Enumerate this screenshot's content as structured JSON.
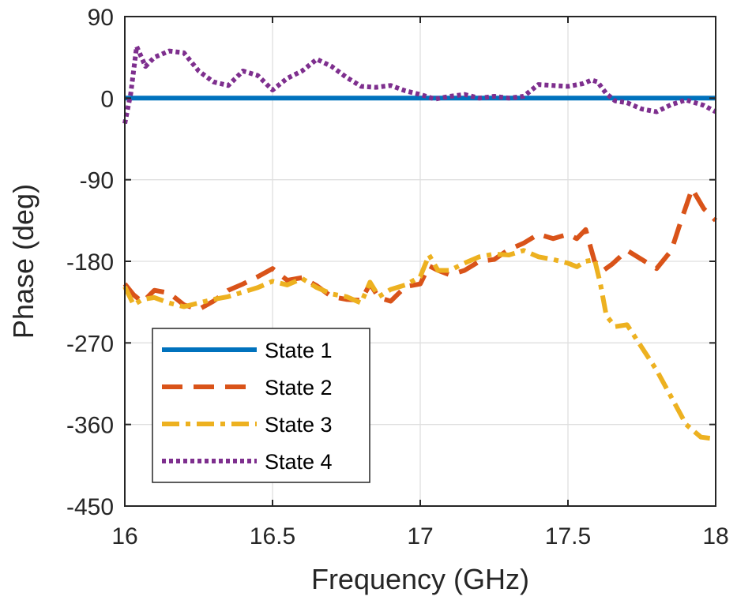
{
  "chart_data": {
    "type": "line",
    "title": "",
    "xlabel": "Frequency (GHz)",
    "ylabel": "Phase (deg)",
    "xlim": [
      16,
      18
    ],
    "ylim": [
      -450,
      90
    ],
    "xticks": [
      16,
      16.5,
      17,
      17.5,
      18
    ],
    "xtick_labels": [
      "16",
      "16.5",
      "17",
      "17.5",
      "18"
    ],
    "yticks": [
      90,
      0,
      -90,
      -180,
      -270,
      -360,
      -450
    ],
    "ytick_labels": [
      "90",
      "0",
      "-90",
      "-180",
      "-270",
      "-360",
      "-450"
    ],
    "grid": true,
    "legend_position": "bottom-left",
    "series": [
      {
        "name": "State 1",
        "label": "State 1",
        "color": "#0072BD",
        "style": "solid",
        "x": [
          16,
          18
        ],
        "y": [
          0,
          0
        ]
      },
      {
        "name": "State 2",
        "label": "State 2",
        "color": "#D95319",
        "style": "dashed",
        "x": [
          16.0,
          16.03,
          16.06,
          16.1,
          16.15,
          16.2,
          16.25,
          16.3,
          16.35,
          16.4,
          16.45,
          16.5,
          16.55,
          16.6,
          16.65,
          16.7,
          16.75,
          16.8,
          16.83,
          16.86,
          16.9,
          16.95,
          17.0,
          17.03,
          17.06,
          17.1,
          17.15,
          17.2,
          17.25,
          17.3,
          17.35,
          17.4,
          17.45,
          17.5,
          17.53,
          17.56,
          17.59,
          17.62,
          17.65,
          17.7,
          17.75,
          17.8,
          17.85,
          17.88,
          17.92,
          17.96,
          18.0
        ],
        "y": [
          -205,
          -217,
          -225,
          -212,
          -215,
          -228,
          -233,
          -224,
          -212,
          -205,
          -197,
          -188,
          -201,
          -198,
          -207,
          -219,
          -222,
          -223,
          -205,
          -220,
          -224,
          -208,
          -205,
          -185,
          -190,
          -195,
          -190,
          -180,
          -178,
          -167,
          -160,
          -150,
          -155,
          -150,
          -155,
          -145,
          -180,
          -190,
          -183,
          -168,
          -178,
          -188,
          -168,
          -138,
          -100,
          -122,
          -135
        ]
      },
      {
        "name": "State 3",
        "label": "State 3",
        "color": "#EDB120",
        "style": "dashdot",
        "x": [
          16.0,
          16.03,
          16.06,
          16.1,
          16.15,
          16.2,
          16.25,
          16.3,
          16.35,
          16.4,
          16.45,
          16.5,
          16.55,
          16.6,
          16.65,
          16.7,
          16.75,
          16.8,
          16.83,
          16.86,
          16.9,
          16.95,
          17.0,
          17.03,
          17.06,
          17.1,
          17.15,
          17.2,
          17.25,
          17.3,
          17.35,
          17.4,
          17.45,
          17.5,
          17.53,
          17.56,
          17.59,
          17.61,
          17.63,
          17.66,
          17.7,
          17.75,
          17.8,
          17.85,
          17.9,
          17.95,
          18.0
        ],
        "y": [
          -208,
          -228,
          -222,
          -220,
          -226,
          -230,
          -226,
          -222,
          -219,
          -214,
          -209,
          -202,
          -206,
          -199,
          -209,
          -216,
          -219,
          -226,
          -203,
          -219,
          -211,
          -206,
          -197,
          -173,
          -190,
          -190,
          -182,
          -175,
          -172,
          -173,
          -168,
          -175,
          -178,
          -182,
          -186,
          -180,
          -178,
          -205,
          -240,
          -252,
          -250,
          -275,
          -300,
          -330,
          -360,
          -374,
          -376
        ]
      },
      {
        "name": "State 4",
        "label": "State 4",
        "color": "#7E2F8E",
        "style": "dotted",
        "x": [
          16.0,
          16.02,
          16.04,
          16.07,
          16.1,
          16.15,
          16.2,
          16.25,
          16.3,
          16.35,
          16.4,
          16.45,
          16.5,
          16.55,
          16.6,
          16.65,
          16.7,
          16.75,
          16.8,
          16.85,
          16.9,
          16.95,
          17.0,
          17.05,
          17.1,
          17.15,
          17.2,
          17.25,
          17.3,
          17.35,
          17.4,
          17.45,
          17.5,
          17.55,
          17.58,
          17.6,
          17.63,
          17.66,
          17.7,
          17.75,
          17.8,
          17.85,
          17.9,
          17.93,
          17.96,
          18.0
        ],
        "y": [
          -28,
          5,
          57,
          35,
          45,
          52,
          50,
          30,
          18,
          14,
          30,
          25,
          9,
          22,
          30,
          43,
          35,
          23,
          13,
          12,
          14,
          8,
          4,
          -1,
          2,
          4,
          0,
          2,
          0,
          2,
          15,
          14,
          13,
          16,
          20,
          18,
          5,
          -3,
          -5,
          -12,
          -15,
          -7,
          -2,
          -5,
          -8,
          -15
        ]
      }
    ]
  }
}
